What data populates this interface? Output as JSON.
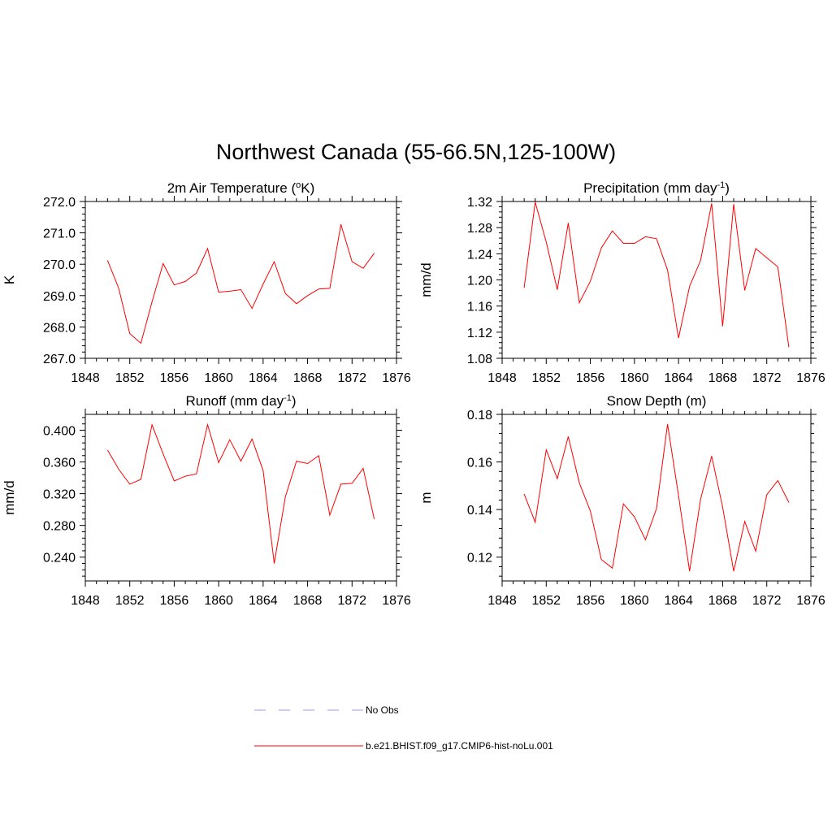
{
  "title": "Northwest Canada (55-66.5N,125-100W)",
  "colors": {
    "model": "#ff0000",
    "obs": "#9999ff"
  },
  "legend": [
    {
      "label": "No Obs",
      "style": "dashed",
      "color": "#9999ff"
    },
    {
      "label": "b.e21.BHIST.f09_g17.CMIP6-hist-noLu.001",
      "style": "solid",
      "color": "#ff0000"
    }
  ],
  "chart_data": [
    {
      "type": "line",
      "title": "2m Air Temperature (",
      "title_sup": "o",
      "title_after": "K)",
      "ylabel": "K",
      "xlim": [
        1848,
        1876
      ],
      "ylim": [
        267.0,
        272.0
      ],
      "x_ticks": [
        "1848",
        "1852",
        "1856",
        "1860",
        "1864",
        "1868",
        "1872",
        "1876"
      ],
      "y_ticks": [
        "267.0",
        "268.0",
        "269.0",
        "270.0",
        "271.0",
        "272.0"
      ],
      "x": [
        1850,
        1851,
        1852,
        1853,
        1854,
        1855,
        1856,
        1857,
        1858,
        1859,
        1860,
        1861,
        1862,
        1863,
        1864,
        1865,
        1866,
        1867,
        1868,
        1869,
        1870,
        1871,
        1872,
        1873,
        1874
      ],
      "series": [
        {
          "name": "b.e21.BHIST.f09_g17.CMIP6-hist-noLu.001",
          "values": [
            270.12,
            269.24,
            267.79,
            267.48,
            268.8,
            270.02,
            269.34,
            269.45,
            269.72,
            270.5,
            269.11,
            269.14,
            269.19,
            268.59,
            269.37,
            270.08,
            269.07,
            268.74,
            269.0,
            269.21,
            269.23,
            271.27,
            270.08,
            269.87,
            270.35
          ]
        }
      ]
    },
    {
      "type": "line",
      "title": "Precipitation (mm day",
      "title_sup": "-1",
      "title_after": ")",
      "ylabel": "mm/d",
      "xlim": [
        1848,
        1876
      ],
      "ylim": [
        1.08,
        1.32
      ],
      "x_ticks": [
        "1848",
        "1852",
        "1856",
        "1860",
        "1864",
        "1868",
        "1872",
        "1876"
      ],
      "y_ticks": [
        "1.08",
        "1.12",
        "1.16",
        "1.20",
        "1.24",
        "1.28",
        "1.32"
      ],
      "x": [
        1850,
        1851,
        1852,
        1853,
        1854,
        1855,
        1856,
        1857,
        1858,
        1859,
        1860,
        1861,
        1862,
        1863,
        1864,
        1865,
        1866,
        1867,
        1868,
        1869,
        1870,
        1871,
        1872,
        1873,
        1874
      ],
      "series": [
        {
          "name": "b.e21.BHIST.f09_g17.CMIP6-hist-noLu.001",
          "values": [
            1.188,
            1.319,
            1.258,
            1.185,
            1.287,
            1.165,
            1.198,
            1.249,
            1.275,
            1.256,
            1.256,
            1.266,
            1.263,
            1.215,
            1.111,
            1.19,
            1.23,
            1.317,
            1.129,
            1.316,
            1.184,
            1.248,
            1.234,
            1.22,
            1.097
          ]
        }
      ]
    },
    {
      "type": "line",
      "title": "Runoff (mm day",
      "title_sup": "-1",
      "title_after": ")",
      "ylabel": "mm/d",
      "xlim": [
        1848,
        1876
      ],
      "ylim": [
        0.21,
        0.42
      ],
      "x_ticks": [
        "1848",
        "1852",
        "1856",
        "1860",
        "1864",
        "1868",
        "1872",
        "1876"
      ],
      "y_ticks": [
        "0.240",
        "0.280",
        "0.320",
        "0.360",
        "0.400"
      ],
      "x": [
        1850,
        1851,
        1852,
        1853,
        1854,
        1855,
        1856,
        1857,
        1858,
        1859,
        1860,
        1861,
        1862,
        1863,
        1864,
        1865,
        1866,
        1867,
        1868,
        1869,
        1870,
        1871,
        1872,
        1873,
        1874
      ],
      "series": [
        {
          "name": "b.e21.BHIST.f09_g17.CMIP6-hist-noLu.001",
          "values": [
            0.375,
            0.351,
            0.332,
            0.338,
            0.407,
            0.37,
            0.336,
            0.342,
            0.345,
            0.407,
            0.359,
            0.388,
            0.361,
            0.389,
            0.349,
            0.232,
            0.316,
            0.361,
            0.358,
            0.368,
            0.293,
            0.332,
            0.333,
            0.352,
            0.288
          ]
        }
      ]
    },
    {
      "type": "line",
      "title": "Snow Depth (m)",
      "title_sup": "",
      "title_after": "",
      "ylabel": "m",
      "xlim": [
        1848,
        1876
      ],
      "ylim": [
        0.11,
        0.18
      ],
      "x_ticks": [
        "1848",
        "1852",
        "1856",
        "1860",
        "1864",
        "1868",
        "1872",
        "1876"
      ],
      "y_ticks": [
        "0.12",
        "0.14",
        "0.16",
        "0.18"
      ],
      "x": [
        1850,
        1851,
        1852,
        1853,
        1854,
        1855,
        1856,
        1857,
        1858,
        1859,
        1860,
        1861,
        1862,
        1863,
        1864,
        1865,
        1866,
        1867,
        1868,
        1869,
        1870,
        1871,
        1872,
        1873,
        1874
      ],
      "series": [
        {
          "name": "b.e21.BHIST.f09_g17.CMIP6-hist-noLu.001",
          "values": [
            0.1465,
            0.1347,
            0.1651,
            0.153,
            0.1707,
            0.1512,
            0.1394,
            0.119,
            0.1154,
            0.1424,
            0.1369,
            0.1273,
            0.1404,
            0.1759,
            0.1459,
            0.1141,
            0.1444,
            0.1625,
            0.141,
            0.1141,
            0.135,
            0.1225,
            0.1462,
            0.1522,
            0.143
          ]
        }
      ]
    }
  ]
}
